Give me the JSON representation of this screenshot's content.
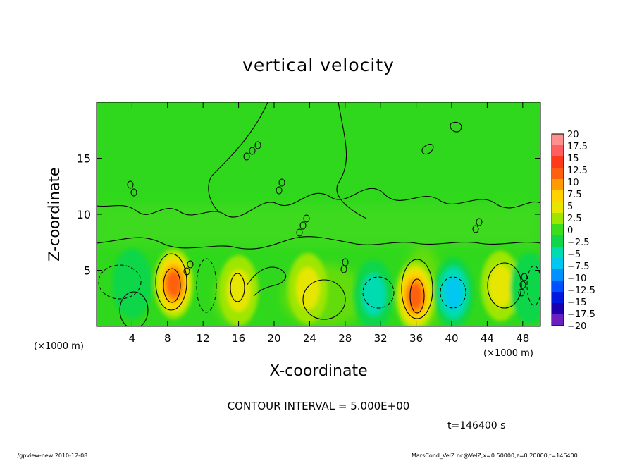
{
  "chart_data": {
    "type": "heatmap",
    "title": "vertical velocity",
    "xlabel": "X-coordinate",
    "ylabel": "Z-coordinate",
    "x_unit": "(×1000 m)",
    "xlim": [
      0,
      50
    ],
    "ylim": [
      0,
      20
    ],
    "x_ticks": [
      4,
      8,
      12,
      16,
      20,
      24,
      28,
      32,
      36,
      40,
      44,
      48
    ],
    "y_ticks": [
      5,
      10,
      15
    ],
    "colorbar_levels": [
      20,
      17.5,
      15,
      12.5,
      10,
      7.5,
      5,
      2.5,
      0,
      -2.5,
      -5,
      -7.5,
      -10,
      -12.5,
      -15,
      -17.5,
      -20
    ],
    "colorbar_colors": [
      "#ff9090",
      "#ff5f5f",
      "#ff3a1c",
      "#ff6010",
      "#ff9a00",
      "#ffd200",
      "#e6e600",
      "#9ee600",
      "#3ddc1c",
      "#10d64a",
      "#00dcb0",
      "#00c8f0",
      "#0090ff",
      "#0050ff",
      "#0018e0",
      "#1c00b0",
      "#6a20c0"
    ],
    "cells": [
      {
        "x": 8.7,
        "z": 3.8,
        "value": 14
      },
      {
        "x": 35.9,
        "z": 2.7,
        "value": 13
      },
      {
        "x": 23.8,
        "z": 3.4,
        "value": 7
      },
      {
        "x": 45.5,
        "z": 3.6,
        "value": 7
      },
      {
        "x": 16.0,
        "z": 3.2,
        "value": 5
      },
      {
        "x": 4.0,
        "z": 3.8,
        "value": -4
      },
      {
        "x": 31.2,
        "z": 2.8,
        "value": -5
      },
      {
        "x": 40.2,
        "z": 3.0,
        "value": -8
      },
      {
        "x": 48.8,
        "z": 3.4,
        "value": -4
      }
    ],
    "contour_interval": "CONTOUR INTERVAL = 5.000E+00",
    "time_label": "t=146400 s",
    "footer_left": "./gpview-new   2010-12-08",
    "footer_right": "MarsCond_VelZ.nc@VelZ,x=0:50000,z=0:20000,t=146400"
  }
}
